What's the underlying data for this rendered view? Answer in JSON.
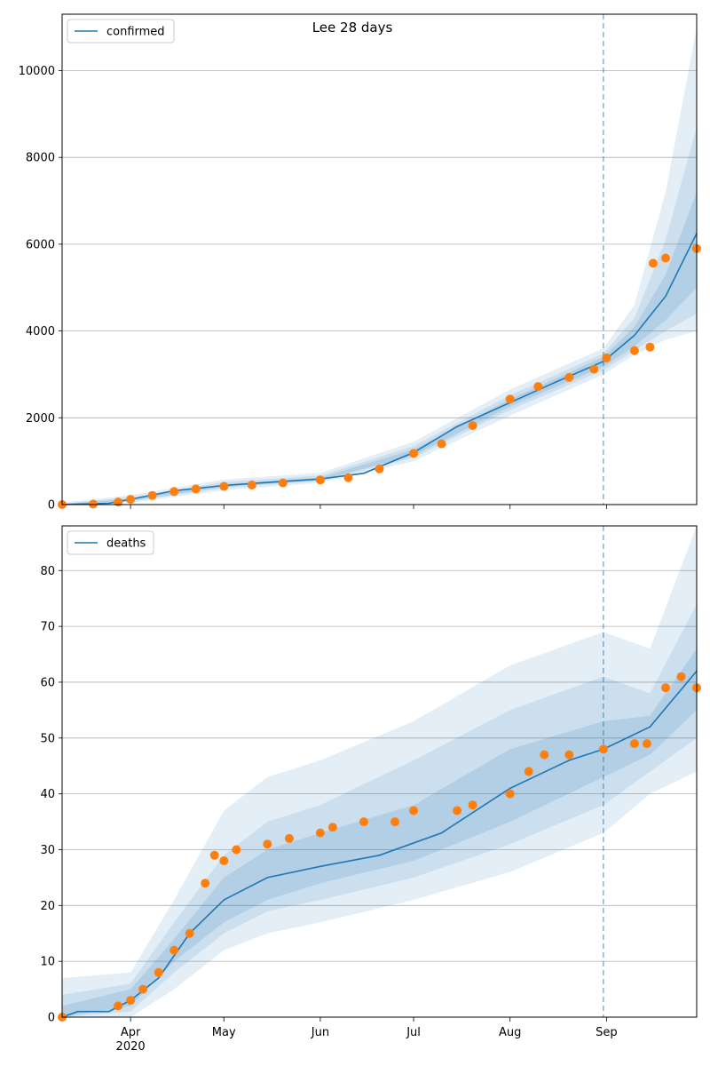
{
  "title": "Lee 28 days",
  "colors": {
    "model": "#1f77b4",
    "observed": "#ff7f0e",
    "band": "#1f77b4",
    "grid": "#b0b0b0",
    "vline": "#1f77b4"
  },
  "x_axis": {
    "ticks": [
      "Apr",
      "May",
      "Jun",
      "Jul",
      "Aug",
      "Sep"
    ],
    "year_label": "2020"
  },
  "chart_data": [
    {
      "type": "line",
      "panel": "top",
      "legend": "confirmed",
      "legend_position": "upper-left",
      "grid": "y",
      "ylim": [
        0,
        11300
      ],
      "yticks": [
        0,
        2000,
        4000,
        6000,
        8000,
        10000
      ],
      "xrange": [
        "2020-03-10",
        "2020-09-30"
      ],
      "forecast_start": "2020-08-31",
      "model_median": {
        "x": [
          "2020-03-10",
          "2020-03-25",
          "2020-04-01",
          "2020-04-15",
          "2020-05-01",
          "2020-05-15",
          "2020-06-01",
          "2020-06-15",
          "2020-07-01",
          "2020-07-15",
          "2020-08-01",
          "2020-08-15",
          "2020-08-31",
          "2020-09-10",
          "2020-09-20",
          "2020-09-30"
        ],
        "y": [
          0,
          30,
          120,
          320,
          440,
          510,
          590,
          720,
          1200,
          1800,
          2350,
          2800,
          3300,
          3900,
          4800,
          6250
        ]
      },
      "bands": {
        "x": [
          "2020-03-10",
          "2020-04-01",
          "2020-05-01",
          "2020-06-01",
          "2020-07-01",
          "2020-08-01",
          "2020-08-31",
          "2020-09-10",
          "2020-09-20",
          "2020-09-30"
        ],
        "outer_low": [
          0,
          40,
          330,
          500,
          1000,
          2050,
          3000,
          3450,
          3800,
          4000
        ],
        "outer_high": [
          40,
          220,
          580,
          730,
          1450,
          2650,
          3600,
          4600,
          7200,
          11000
        ],
        "mid_low": [
          0,
          70,
          380,
          540,
          1080,
          2180,
          3100,
          3550,
          4000,
          4400
        ],
        "mid_high": [
          20,
          170,
          520,
          670,
          1350,
          2520,
          3480,
          4300,
          6100,
          8700
        ],
        "inner_low": [
          0,
          95,
          410,
          560,
          1130,
          2260,
          3180,
          3650,
          4250,
          5000
        ],
        "inner_high": [
          10,
          140,
          470,
          620,
          1270,
          2430,
          3400,
          4100,
          5300,
          7200
        ]
      },
      "observed": {
        "x": [
          "2020-03-10",
          "2020-03-20",
          "2020-03-28",
          "2020-04-01",
          "2020-04-08",
          "2020-04-15",
          "2020-04-22",
          "2020-05-01",
          "2020-05-10",
          "2020-05-20",
          "2020-06-01",
          "2020-06-10",
          "2020-06-20",
          "2020-07-01",
          "2020-07-10",
          "2020-07-20",
          "2020-08-01",
          "2020-08-10",
          "2020-08-20",
          "2020-08-28",
          "2020-09-01",
          "2020-09-10",
          "2020-09-15",
          "2020-09-16",
          "2020-09-20",
          "2020-09-30"
        ],
        "y": [
          0,
          10,
          60,
          120,
          210,
          300,
          360,
          420,
          450,
          500,
          570,
          620,
          820,
          1180,
          1400,
          1820,
          2430,
          2720,
          2930,
          3120,
          3380,
          3550,
          3630,
          5560,
          5680,
          5900
        ]
      }
    },
    {
      "type": "line",
      "panel": "bottom",
      "legend": "deaths",
      "legend_position": "upper-left",
      "grid": "y",
      "ylim": [
        0,
        88
      ],
      "yticks": [
        0,
        10,
        20,
        30,
        40,
        50,
        60,
        70,
        80
      ],
      "xrange": [
        "2020-03-10",
        "2020-09-30"
      ],
      "forecast_start": "2020-08-31",
      "model_median": {
        "x": [
          "2020-03-10",
          "2020-03-15",
          "2020-03-25",
          "2020-04-01",
          "2020-04-10",
          "2020-04-20",
          "2020-05-01",
          "2020-05-15",
          "2020-06-01",
          "2020-06-20",
          "2020-07-10",
          "2020-08-01",
          "2020-08-20",
          "2020-08-31",
          "2020-09-15",
          "2020-09-30"
        ],
        "y": [
          0,
          1,
          1,
          3,
          7,
          15,
          21,
          25,
          27,
          29,
          33,
          41,
          46,
          48,
          52,
          62
        ]
      },
      "bands": {
        "x": [
          "2020-03-10",
          "2020-04-01",
          "2020-04-15",
          "2020-05-01",
          "2020-05-15",
          "2020-06-01",
          "2020-07-01",
          "2020-08-01",
          "2020-08-31",
          "2020-09-15",
          "2020-09-30"
        ],
        "outer_low": [
          0,
          0,
          5,
          12,
          15,
          17,
          21,
          26,
          33,
          40,
          44
        ],
        "outer_high": [
          7,
          8,
          21,
          37,
          43,
          46,
          53,
          63,
          69,
          66,
          88
        ],
        "mid_low": [
          0,
          1,
          8,
          15,
          19,
          21,
          25,
          31,
          38,
          44,
          50
        ],
        "mid_high": [
          4,
          6,
          17,
          29,
          35,
          38,
          46,
          55,
          61,
          58,
          74
        ],
        "inner_low": [
          0,
          2,
          10,
          17,
          21,
          24,
          28,
          35,
          43,
          47,
          55
        ],
        "inner_high": [
          2,
          5,
          14,
          25,
          30,
          33,
          38,
          48,
          53,
          54,
          66
        ]
      },
      "observed": {
        "x": [
          "2020-03-10",
          "2020-03-28",
          "2020-04-01",
          "2020-04-05",
          "2020-04-10",
          "2020-04-15",
          "2020-04-20",
          "2020-04-25",
          "2020-04-28",
          "2020-05-01",
          "2020-05-05",
          "2020-05-15",
          "2020-05-22",
          "2020-06-01",
          "2020-06-05",
          "2020-06-15",
          "2020-06-25",
          "2020-07-01",
          "2020-07-15",
          "2020-07-20",
          "2020-08-01",
          "2020-08-07",
          "2020-08-12",
          "2020-08-20",
          "2020-08-31",
          "2020-09-10",
          "2020-09-14",
          "2020-09-20",
          "2020-09-25",
          "2020-09-30"
        ],
        "y": [
          0,
          2,
          3,
          5,
          8,
          12,
          15,
          24,
          29,
          28,
          30,
          31,
          32,
          33,
          34,
          35,
          35,
          37,
          37,
          38,
          40,
          44,
          47,
          47,
          48,
          49,
          49,
          59,
          61,
          59
        ]
      }
    }
  ]
}
